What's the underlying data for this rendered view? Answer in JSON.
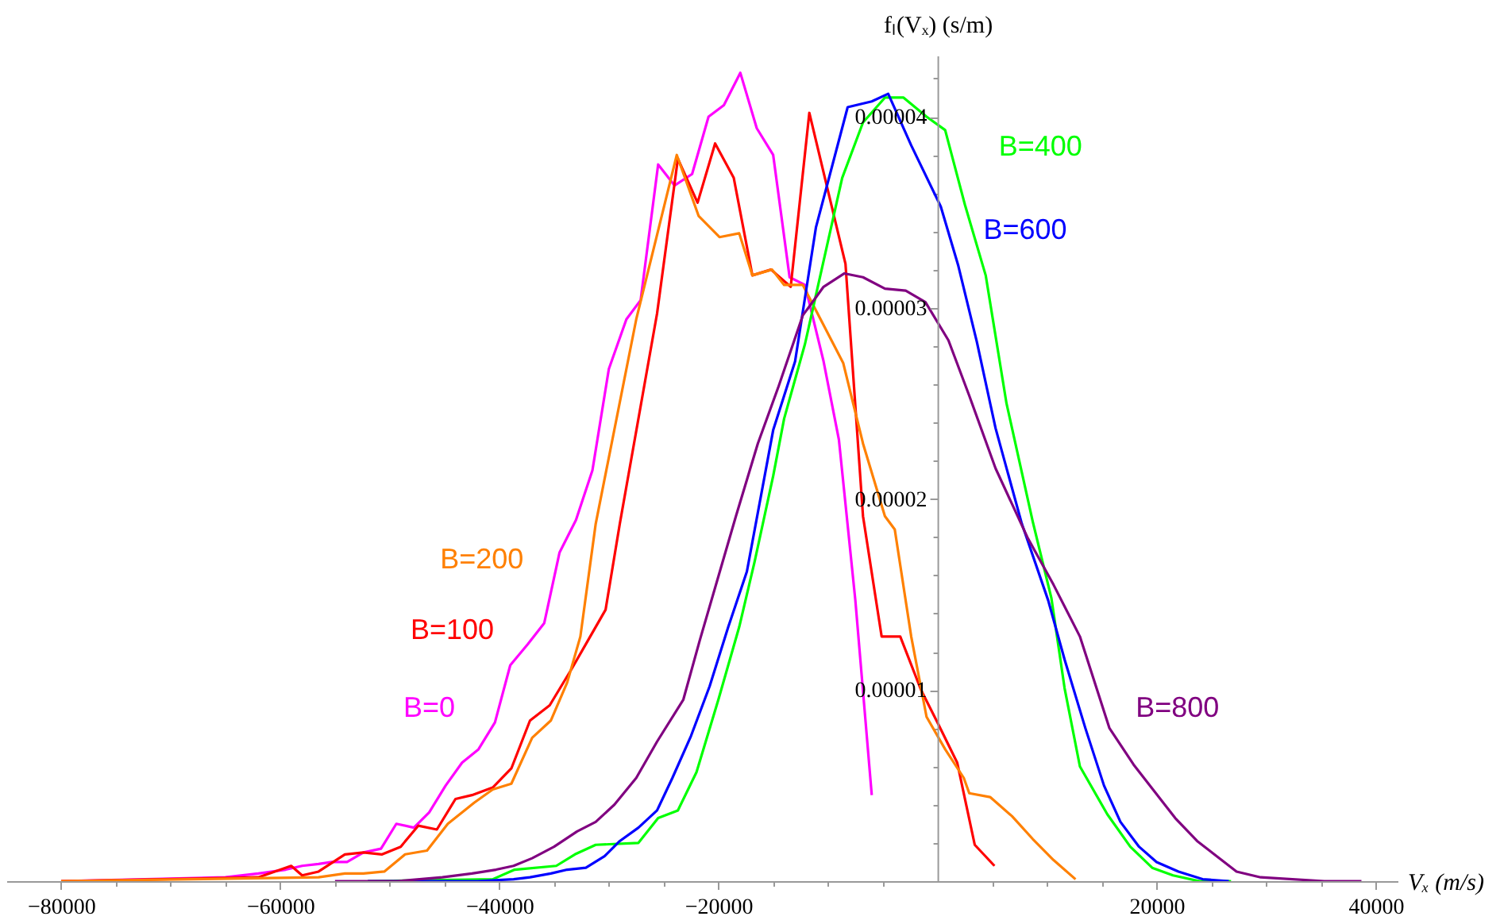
{
  "chart_data": {
    "type": "line",
    "xlabel": "Vₓ (m/s)",
    "ylabel": "fₗ(Vₓ) (s/m)",
    "xlim": [
      -85000,
      42000
    ],
    "ylim": [
      0,
      4.32e-05
    ],
    "xticks": [
      -80000,
      {
        "value": -75000,
        "label": null
      },
      {
        "value": -70000,
        "label": null
      },
      {
        "value": -65000,
        "label": null
      },
      -60000,
      {
        "value": -55000,
        "label": null
      },
      {
        "value": -50000,
        "label": null
      },
      {
        "value": -45000,
        "label": null
      },
      -40000,
      {
        "value": -35000,
        "label": null
      },
      {
        "value": -30000,
        "label": null
      },
      {
        "value": -25000,
        "label": null
      },
      -20000,
      {
        "value": -15000,
        "label": null
      },
      {
        "value": -10000,
        "label": null
      },
      {
        "value": -5000,
        "label": null
      },
      {
        "value": 5000,
        "label": null
      },
      {
        "value": 10000,
        "label": null
      },
      {
        "value": 15000,
        "label": null
      },
      20000,
      {
        "value": 25000,
        "label": null
      },
      {
        "value": 30000,
        "label": null
      },
      {
        "value": 35000,
        "label": null
      },
      40000
    ],
    "yticks": [
      {
        "value": 2e-06,
        "label": null
      },
      {
        "value": 4e-06,
        "label": null
      },
      {
        "value": 6e-06,
        "label": null
      },
      {
        "value": 8e-06,
        "label": null
      },
      {
        "value": 1e-05,
        "label": "0.00001"
      },
      {
        "value": 1.2e-05,
        "label": null
      },
      {
        "value": 1.4e-05,
        "label": null
      },
      {
        "value": 1.6e-05,
        "label": null
      },
      {
        "value": 1.8e-05,
        "label": null
      },
      {
        "value": 2e-05,
        "label": "0.00002"
      },
      {
        "value": 2.2e-05,
        "label": null
      },
      {
        "value": 2.4e-05,
        "label": null
      },
      {
        "value": 2.6e-05,
        "label": null
      },
      {
        "value": 2.8e-05,
        "label": null
      },
      {
        "value": 3e-05,
        "label": "0.00003"
      },
      {
        "value": 3.2e-05,
        "label": null
      },
      {
        "value": 3.4e-05,
        "label": null
      },
      {
        "value": 3.6e-05,
        "label": null
      },
      {
        "value": 3.8e-05,
        "label": null
      },
      {
        "value": 4e-05,
        "label": "0.00004"
      },
      {
        "value": 4.2e-05,
        "label": null
      }
    ],
    "grid": false,
    "legend": false,
    "marker": "none",
    "line_style": "solid",
    "series": [
      {
        "name": "B=0",
        "color": "#ff00ff",
        "x": [
          -80000,
          -65000,
          -62000,
          -59500,
          -58000,
          -56500,
          -55300,
          -53900,
          -52400,
          -50800,
          -49400,
          -47800,
          -46400,
          -44900,
          -43400,
          -41900,
          -40400,
          -39000,
          -37400,
          -35900,
          -34500,
          -33000,
          -31500,
          -30000,
          -28400,
          -27100,
          -25500,
          -24000,
          -22400,
          -20900,
          -19500,
          -18000,
          -16500,
          -15000,
          -13500,
          -12100,
          -10400,
          -9000,
          -7500,
          -6000
        ],
        "values": [
          0,
          2e-07,
          4e-07,
          6e-07,
          8e-07,
          9e-07,
          1e-06,
          1e-06,
          1.5e-06,
          1.7e-06,
          3e-06,
          2.8e-06,
          3.6e-06,
          5e-06,
          6.2e-06,
          6.9e-06,
          8.3e-06,
          1.13e-05,
          1.24e-05,
          1.35e-05,
          1.72e-05,
          1.89e-05,
          2.15e-05,
          2.68e-05,
          2.94e-05,
          3.04e-05,
          3.75e-05,
          3.64e-05,
          3.7e-05,
          4e-05,
          4.06e-05,
          4.23e-05,
          3.94e-05,
          3.8e-05,
          3.16e-05,
          3.12e-05,
          2.72e-05,
          2.31e-05,
          1.47e-05,
          4.5e-06
        ]
      },
      {
        "name": "B=100",
        "color": "#ff0000",
        "x": [
          -80000,
          -62000,
          -59000,
          -58000,
          -56500,
          -54100,
          -52400,
          -50700,
          -49000,
          -47400,
          -45700,
          -44000,
          -42500,
          -40600,
          -38900,
          -37200,
          -35400,
          -33400,
          -31900,
          -30300,
          -29000,
          -25600,
          -23700,
          -21900,
          -20300,
          -18600,
          -16900,
          -15200,
          -13400,
          -11700,
          -8400,
          -6800,
          -5100,
          -3400,
          -1500,
          0,
          1800,
          3400,
          5200
        ],
        "values": [
          0,
          2e-07,
          8e-07,
          3e-07,
          5e-07,
          1.4e-06,
          1.5e-06,
          1.4e-06,
          1.8e-06,
          2.9e-06,
          2.7e-06,
          4.3e-06,
          4.5e-06,
          4.9e-06,
          5.9e-06,
          8.4e-06,
          9.2e-06,
          1.11e-05,
          1.26e-05,
          1.42e-05,
          1.87e-05,
          2.97e-05,
          3.78e-05,
          3.55e-05,
          3.86e-05,
          3.68e-05,
          3.17e-05,
          3.2e-05,
          3.11e-05,
          4.02e-05,
          3.23e-05,
          1.91e-05,
          1.28e-05,
          1.28e-05,
          1e-05,
          8.3e-06,
          6.2e-06,
          1.9e-06,
          8e-07
        ]
      },
      {
        "name": "B=200",
        "color": "#ff8000",
        "x": [
          -80000,
          -56500,
          -54100,
          -52400,
          -50500,
          -48600,
          -46600,
          -44700,
          -42300,
          -40600,
          -38900,
          -37000,
          -35300,
          -33800,
          -32600,
          -31200,
          -27500,
          -23800,
          -21800,
          -19900,
          -18100,
          -16900,
          -15100,
          -14000,
          -12300,
          -10400,
          -8600,
          -6800,
          -4800,
          -3900,
          -2400,
          -1000,
          700,
          2400,
          2900,
          4800,
          6800,
          8700,
          10600,
          12600
        ],
        "values": [
          0,
          2e-07,
          4e-07,
          4e-07,
          5e-07,
          1.4e-06,
          1.6e-06,
          3e-06,
          4.1e-06,
          4.8e-06,
          5.1e-06,
          7.5e-06,
          8.4e-06,
          1.04e-05,
          1.28e-05,
          1.87e-05,
          2.94e-05,
          3.8e-05,
          3.48e-05,
          3.37e-05,
          3.39e-05,
          3.17e-05,
          3.2e-05,
          3.12e-05,
          3.12e-05,
          2.91e-05,
          2.71e-05,
          2.29e-05,
          1.91e-05,
          1.84e-05,
          1.28e-05,
          8.6e-06,
          6.9e-06,
          5.4e-06,
          4.6e-06,
          4.4e-06,
          3.4e-06,
          2.2e-06,
          1.1e-06,
          1e-07
        ]
      },
      {
        "name": "B=400",
        "color": "#00ff00",
        "x": [
          -52000,
          -40600,
          -38600,
          -34800,
          -33100,
          -31200,
          -27300,
          -25500,
          -23700,
          -22000,
          -20000,
          -18100,
          -16700,
          -15000,
          -14000,
          -12100,
          -8700,
          -6800,
          -4800,
          -3100,
          -1000,
          700,
          2500,
          4400,
          6300,
          8700,
          10400,
          11600,
          13000,
          15500,
          17600,
          19600,
          21500,
          23900,
          26800
        ],
        "values": [
          0,
          1e-07,
          6e-07,
          8e-07,
          1.4e-06,
          1.9e-06,
          2e-06,
          3.3e-06,
          3.7e-06,
          5.7e-06,
          9.5e-06,
          1.33e-05,
          1.67e-05,
          2.12e-05,
          2.42e-05,
          2.81e-05,
          3.68e-05,
          3.97e-05,
          4.1e-05,
          4.1e-05,
          4e-05,
          3.93e-05,
          3.54e-05,
          3.17e-05,
          2.5e-05,
          1.88e-05,
          1.48e-05,
          1.01e-05,
          6e-06,
          3.5e-06,
          1.8e-06,
          7e-07,
          3e-07,
          0,
          0
        ]
      },
      {
        "name": "B=600",
        "color": "#0000ff",
        "x": [
          -52000,
          -42000,
          -38700,
          -37200,
          -35300,
          -33800,
          -32100,
          -30400,
          -29000,
          -27300,
          -25600,
          -24200,
          -22500,
          -20800,
          -19100,
          -17400,
          -15000,
          -13000,
          -11100,
          -8200,
          -6000,
          -4500,
          -2400,
          300,
          1900,
          3600,
          5300,
          7700,
          10100,
          11600,
          13500,
          15200,
          16700,
          18400,
          20000,
          22000,
          24200,
          26600
        ],
        "values": [
          0,
          0,
          1e-07,
          2e-07,
          4e-07,
          6e-07,
          7e-07,
          1.3e-06,
          2.1e-06,
          2.8e-06,
          3.7e-06,
          5.4e-06,
          7.6e-06,
          1.02e-05,
          1.33e-05,
          1.62e-05,
          2.36e-05,
          2.72e-05,
          3.42e-05,
          4.05e-05,
          4.08e-05,
          4.12e-05,
          3.85e-05,
          3.53e-05,
          3.22e-05,
          2.82e-05,
          2.37e-05,
          1.87e-05,
          1.47e-05,
          1.16e-05,
          8e-06,
          5e-06,
          3.1e-06,
          1.8e-06,
          1e-06,
          5e-07,
          1e-07,
          0
        ]
      },
      {
        "name": "B=800",
        "color": "#800080",
        "x": [
          -55000,
          -49300,
          -45200,
          -42500,
          -40300,
          -38700,
          -37000,
          -35000,
          -32900,
          -31200,
          -29500,
          -27500,
          -25600,
          -23200,
          -21700,
          -18400,
          -16400,
          -14500,
          -12300,
          -10400,
          -8500,
          -6800,
          -4800,
          -2900,
          -1100,
          1000,
          2900,
          5300,
          8200,
          10600,
          13000,
          15700,
          17900,
          21700,
          23700,
          27300,
          29500,
          35300,
          38700
        ],
        "values": [
          0,
          0,
          2e-07,
          4e-07,
          6e-07,
          8e-07,
          1.2e-06,
          1.8e-06,
          2.6e-06,
          3.1e-06,
          4e-06,
          5.4e-06,
          7.3e-06,
          9.5e-06,
          1.26e-05,
          1.91e-05,
          2.29e-05,
          2.59e-05,
          2.96e-05,
          3.11e-05,
          3.18e-05,
          3.16e-05,
          3.1e-05,
          3.09e-05,
          3.03e-05,
          2.83e-05,
          2.54e-05,
          2.16e-05,
          1.8e-05,
          1.55e-05,
          1.28e-05,
          8e-06,
          6.1e-06,
          3.3e-06,
          2.1e-06,
          5e-07,
          2e-07,
          0,
          0
        ]
      }
    ]
  }
}
